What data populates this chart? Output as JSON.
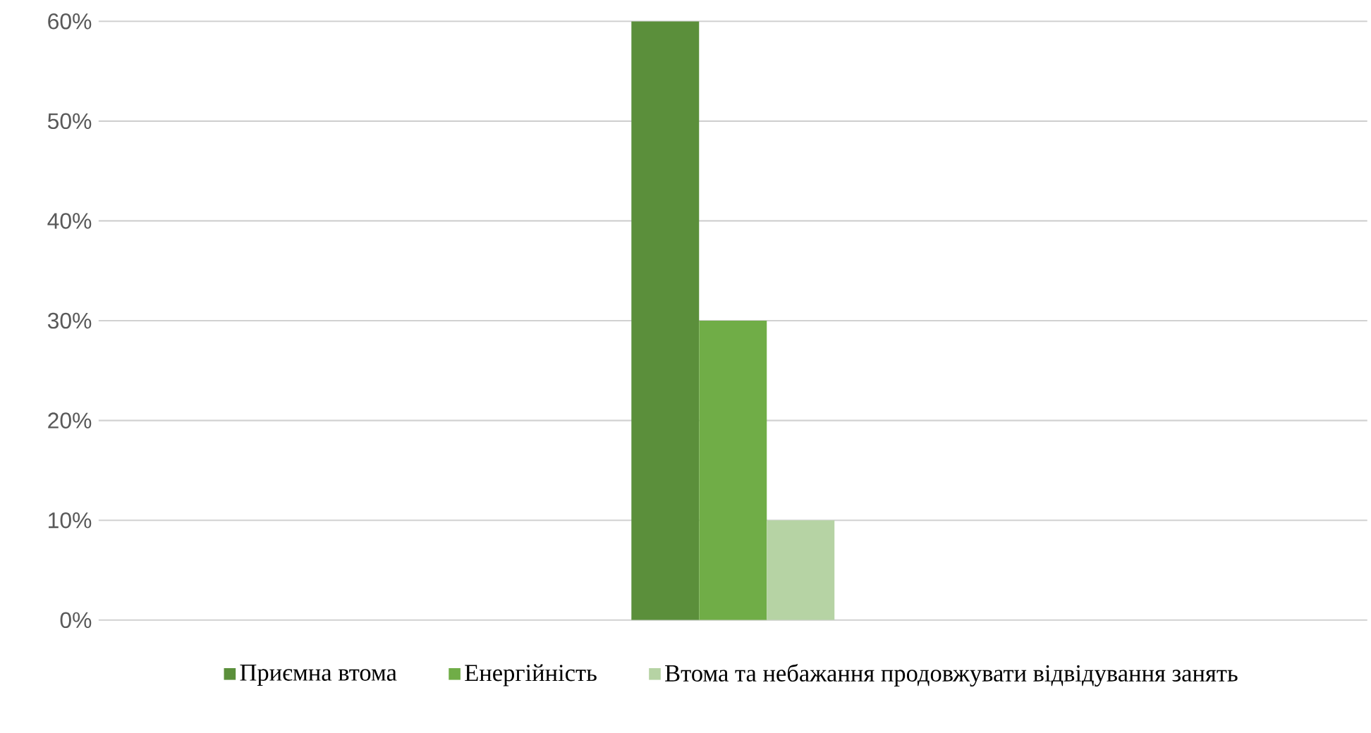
{
  "chart_data": {
    "type": "bar",
    "categories": [
      null
    ],
    "series": [
      {
        "name": "Приємна втома",
        "color": "#5b8f3b",
        "values": [
          60
        ]
      },
      {
        "name": "Енергійність",
        "color": "#70ad47",
        "values": [
          30
        ]
      },
      {
        "name": "Втома та небажання продовжувати відвідування занять",
        "color": "#b6d3a4",
        "values": [
          10
        ]
      }
    ],
    "ylim": [
      0,
      60
    ],
    "yticks": [
      {
        "value": 0,
        "label": "0%"
      },
      {
        "value": 10,
        "label": "10%"
      },
      {
        "value": 20,
        "label": "20%"
      },
      {
        "value": 30,
        "label": "30%"
      },
      {
        "value": 40,
        "label": "40%"
      },
      {
        "value": 50,
        "label": "50%"
      },
      {
        "value": 60,
        "label": "60%"
      }
    ],
    "grid": "y",
    "legend": "bottom"
  }
}
